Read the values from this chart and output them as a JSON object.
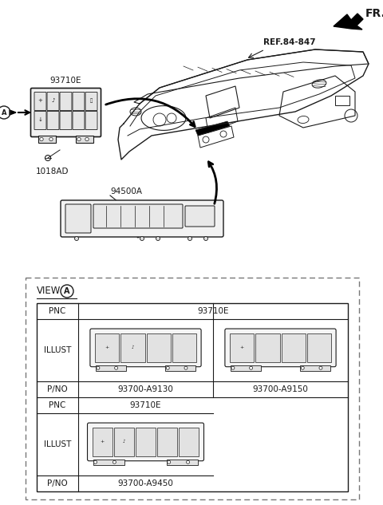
{
  "bg_color": "#ffffff",
  "fr_label": "FR.",
  "ref_label": "REF.84-847",
  "label_93710E": "93710E",
  "label_1018AD": "1018AD",
  "label_94500A": "94500A",
  "view_label": "VIEW",
  "view_circle_label": "A",
  "pnc1": "93710E",
  "pno1": "93700-A9130",
  "pno2": "93700-A9150",
  "pnc2": "93710E",
  "pno3": "93700-A9450",
  "line_color": "#1a1a1a",
  "text_color": "#1a1a1a",
  "dash_color": "#777777"
}
